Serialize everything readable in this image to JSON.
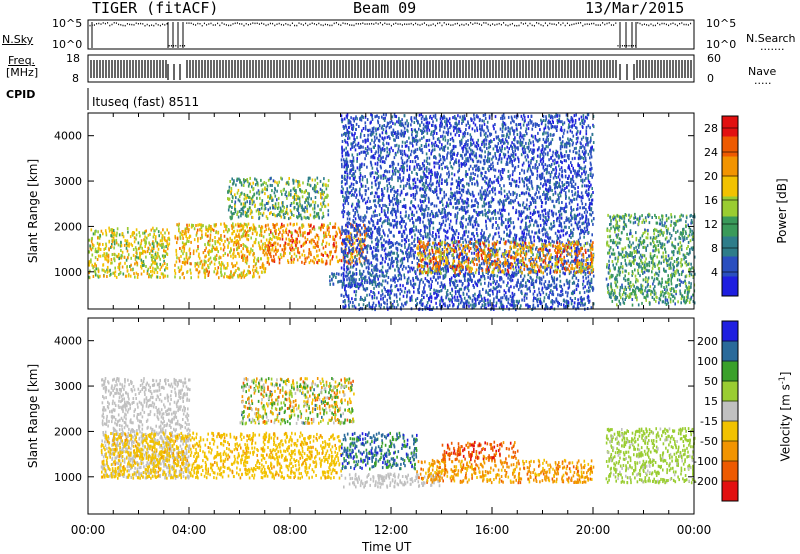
{
  "header": {
    "station": "TIGER (fitACF)",
    "beam": "Beam 09",
    "date": "13/Mar/2015"
  },
  "top_panels": {
    "nsky_label": "N.Sky",
    "nsearch_label": "N.Search",
    "nsky_ticks": [
      "10^5",
      "10^0"
    ],
    "nsearch_ticks": [
      "10^5",
      "10^0"
    ],
    "freq_label_1": "Freq.",
    "freq_label_2": "[MHz]",
    "freq_ticks": [
      "18",
      "8"
    ],
    "nave_label": "Nave",
    "nave_ticks": [
      "60",
      "0"
    ],
    "cpid_label": "CPID",
    "cpid_value": "Ituseq (fast) 8511"
  },
  "chart_data": [
    {
      "type": "heatmap",
      "quantity": "power",
      "ylabel": "Slant Range [km]",
      "xlabel": "Time UT",
      "x_ticks": [
        "00:00",
        "04:00",
        "08:00",
        "12:00",
        "16:00",
        "20:00",
        "00:00"
      ],
      "xlim_hours": [
        0,
        24
      ],
      "ylim": [
        180,
        4500
      ],
      "y_ticks": [
        1000,
        2000,
        3000,
        4000
      ],
      "colorbar": {
        "label": "Power [dB]",
        "ticks": [
          4,
          8,
          12,
          16,
          20,
          24,
          28
        ],
        "range": [
          0,
          30
        ],
        "colors": [
          "#1f1fe0",
          "#2a4fbf",
          "#2e7d8a",
          "#3a9a5a",
          "#9acd32",
          "#f2c200",
          "#f29400",
          "#ee5a00",
          "#e21010"
        ]
      },
      "echo_regions": [
        {
          "t": [
            0.0,
            3.2
          ],
          "r": [
            900,
            2000
          ],
          "level": [
            12,
            22
          ]
        },
        {
          "t": [
            3.4,
            7.0
          ],
          "r": [
            900,
            2100
          ],
          "level": [
            14,
            24
          ]
        },
        {
          "t": [
            5.5,
            9.5
          ],
          "r": [
            2200,
            3100
          ],
          "level": [
            6,
            18
          ]
        },
        {
          "t": [
            7.0,
            11.0
          ],
          "r": [
            1200,
            2100
          ],
          "level": [
            16,
            28
          ]
        },
        {
          "t": [
            9.5,
            11.5
          ],
          "r": [
            700,
            1000
          ],
          "level": [
            4,
            10
          ]
        },
        {
          "t": [
            10.0,
            20.0
          ],
          "r": [
            200,
            4500
          ],
          "level": [
            2,
            8
          ]
        },
        {
          "t": [
            13.0,
            20.0
          ],
          "r": [
            1000,
            1700
          ],
          "level": [
            14,
            28
          ]
        },
        {
          "t": [
            20.5,
            24.0
          ],
          "r": [
            300,
            2300
          ],
          "level": [
            6,
            16
          ]
        }
      ]
    },
    {
      "type": "heatmap",
      "quantity": "velocity",
      "ylabel": "Slant Range [km]",
      "xlabel": "Time UT",
      "x_ticks": [
        "00:00",
        "04:00",
        "08:00",
        "12:00",
        "16:00",
        "20:00",
        "00:00"
      ],
      "xlim_hours": [
        0,
        24
      ],
      "ylim": [
        180,
        4500
      ],
      "y_ticks": [
        1000,
        2000,
        3000,
        4000
      ],
      "colorbar": {
        "label": "Velocity [m s^-1]",
        "ticks": [
          "200",
          "100",
          "50",
          "15",
          "-15",
          "-50",
          "-100",
          "-200"
        ],
        "range": [
          -250,
          250
        ],
        "colors": [
          "#e21010",
          "#ee5a00",
          "#f29400",
          "#f2c200",
          "#c0c0c0",
          "#9acd32",
          "#3aa02a",
          "#2a6a9a",
          "#1f1fe0"
        ]
      },
      "echo_regions": [
        {
          "t": [
            0.5,
            4.0
          ],
          "r": [
            1000,
            3200
          ],
          "level": [
            -15,
            10
          ]
        },
        {
          "t": [
            0.5,
            10.0
          ],
          "r": [
            1000,
            2000
          ],
          "level": [
            -90,
            -30
          ]
        },
        {
          "t": [
            6.0,
            10.5
          ],
          "r": [
            2200,
            3200
          ],
          "level": [
            -150,
            150
          ]
        },
        {
          "t": [
            10.0,
            13.0
          ],
          "r": [
            1200,
            2000
          ],
          "level": [
            100,
            220
          ]
        },
        {
          "t": [
            10.0,
            14.0
          ],
          "r": [
            800,
            1100
          ],
          "level": [
            -15,
            15
          ]
        },
        {
          "t": [
            13.0,
            20.0
          ],
          "r": [
            900,
            1400
          ],
          "level": [
            -150,
            -60
          ]
        },
        {
          "t": [
            14.0,
            17.0
          ],
          "r": [
            1400,
            1800
          ],
          "level": [
            -220,
            -120
          ]
        },
        {
          "t": [
            20.5,
            24.0
          ],
          "r": [
            900,
            2100
          ],
          "level": [
            20,
            70
          ]
        }
      ]
    }
  ]
}
